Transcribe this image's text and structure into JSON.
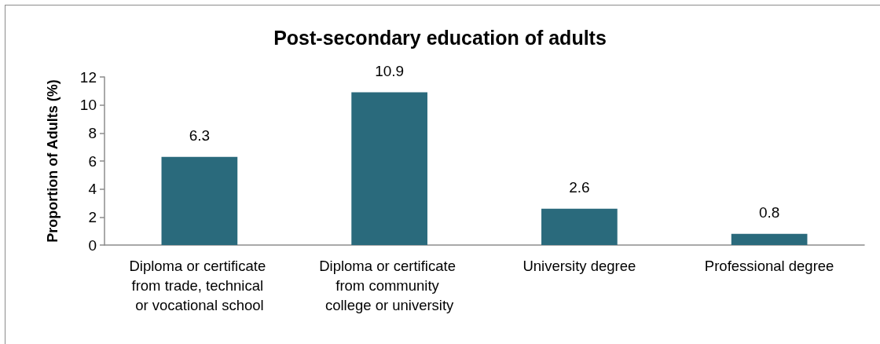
{
  "chart_data": {
    "type": "bar",
    "title": "Post-secondary education of adults",
    "categories": [
      "Diploma or certificate from trade, technical or vocational school",
      "Diploma or certificate from community college or university",
      "University degree",
      "Professional degree"
    ],
    "values": [
      6.3,
      10.9,
      2.6,
      0.8
    ],
    "color": "#2a6a7c",
    "ylabel": "Proportion of Adults (%)",
    "ylim": [
      0,
      12
    ],
    "yticks": [
      0,
      2,
      4,
      6,
      8,
      10,
      12
    ],
    "grid": false,
    "data_labels": true
  }
}
